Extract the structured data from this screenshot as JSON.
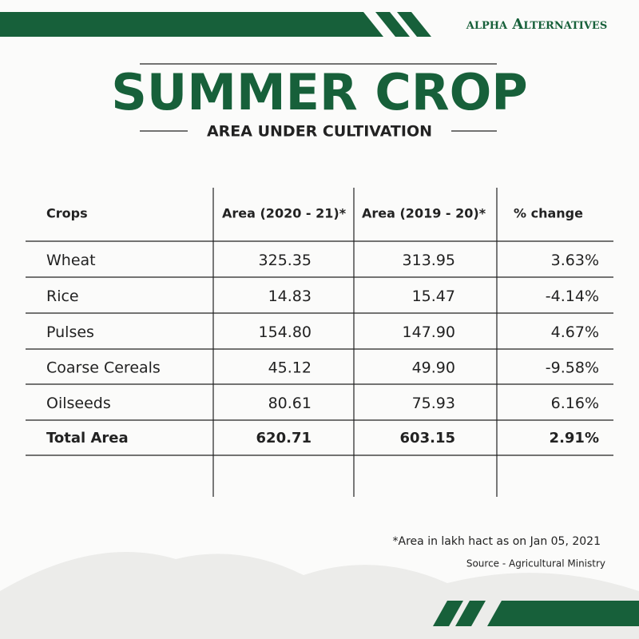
{
  "brand": "αlpha Alternatives",
  "header": {
    "title": "SUMMER CROP",
    "subtitle": "AREA UNDER CULTIVATION"
  },
  "table": {
    "columns": [
      "Crops",
      "Area (2020 - 21)*",
      "Area (2019 - 20)*",
      "% change"
    ],
    "rows": [
      [
        "Wheat",
        "325.35",
        "313.95",
        "3.63%"
      ],
      [
        "Rice",
        "14.83",
        "15.47",
        "-4.14%"
      ],
      [
        "Pulses",
        "154.80",
        "147.90",
        "4.67%"
      ],
      [
        "Coarse Cereals",
        "45.12",
        "49.90",
        "-9.58%"
      ],
      [
        "Oilseeds",
        "80.61",
        "75.93",
        "6.16%"
      ]
    ],
    "total": [
      "Total Area",
      "620.71",
      "603.15",
      "2.91%"
    ]
  },
  "footnote": "*Area in lakh hact as on Jan 05, 2021",
  "source": "Source - Agricultural Ministry"
}
